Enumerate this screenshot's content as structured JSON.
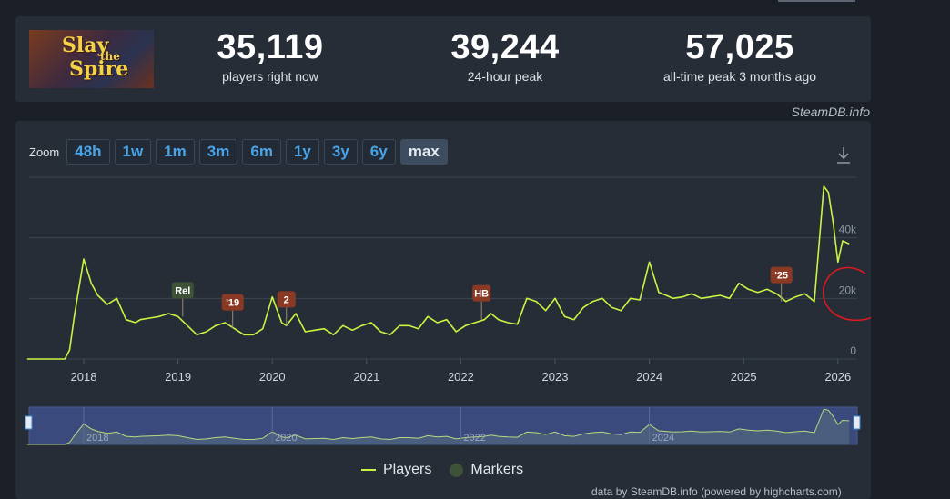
{
  "stats": [
    {
      "value": "35,119",
      "label": "players right now"
    },
    {
      "value": "39,244",
      "label": "24-hour peak"
    },
    {
      "value": "57,025",
      "label": "all-time peak 3 months ago"
    }
  ],
  "game": {
    "logo_line1": "Slay",
    "logo_line2": "the",
    "logo_line3": "Spire"
  },
  "credit_top": "SteamDB.info",
  "zoom": {
    "label": "Zoom",
    "buttons": [
      "48h",
      "1w",
      "1m",
      "3m",
      "6m",
      "1y",
      "3y",
      "6y",
      "max"
    ],
    "active": "max"
  },
  "legend": {
    "players": "Players",
    "markers": "Markers"
  },
  "credit_bottom": "data by SteamDB.info (powered by highcharts.com)",
  "colors": {
    "line": "#c9f542",
    "marker": "#8a3a24",
    "marker_release": "#3d5236",
    "annotation": "#e0191d",
    "navigator": "#3a4a7c"
  },
  "chart_data": {
    "type": "line",
    "ylim": [
      0,
      60000
    ],
    "yticks": [
      "0",
      "20k",
      "40k"
    ],
    "xticks": [
      "2018",
      "2019",
      "2020",
      "2021",
      "2022",
      "2023",
      "2024",
      "2025",
      "2026"
    ],
    "navigator_labels": [
      "2018",
      "2020",
      "2022",
      "2024"
    ],
    "series": [
      {
        "name": "Players",
        "x": [
          2017.4,
          2017.6,
          2017.8,
          2017.85,
          2017.9,
          2018.0,
          2018.08,
          2018.15,
          2018.25,
          2018.35,
          2018.45,
          2018.55,
          2018.6,
          2018.7,
          2018.8,
          2018.9,
          2019.0,
          2019.1,
          2019.2,
          2019.3,
          2019.4,
          2019.5,
          2019.6,
          2019.7,
          2019.8,
          2019.9,
          2020.0,
          2020.1,
          2020.15,
          2020.25,
          2020.35,
          2020.45,
          2020.55,
          2020.65,
          2020.75,
          2020.85,
          2020.95,
          2021.05,
          2021.15,
          2021.25,
          2021.35,
          2021.45,
          2021.55,
          2021.65,
          2021.75,
          2021.85,
          2021.95,
          2022.05,
          2022.15,
          2022.25,
          2022.32,
          2022.4,
          2022.5,
          2022.6,
          2022.7,
          2022.8,
          2022.9,
          2023.0,
          2023.1,
          2023.2,
          2023.3,
          2023.4,
          2023.5,
          2023.6,
          2023.7,
          2023.8,
          2023.9,
          2024.0,
          2024.1,
          2024.18,
          2024.25,
          2024.35,
          2024.45,
          2024.55,
          2024.65,
          2024.75,
          2024.85,
          2024.95,
          2025.05,
          2025.15,
          2025.25,
          2025.35,
          2025.45,
          2025.55,
          2025.65,
          2025.75,
          2025.85,
          2025.9,
          2025.95,
          2026.0,
          2026.05,
          2026.12
        ],
        "y": [
          0,
          0,
          0,
          3000,
          14000,
          33000,
          25000,
          21000,
          18000,
          20000,
          13000,
          12000,
          13000,
          13500,
          14000,
          15000,
          14000,
          11000,
          8000,
          9000,
          11000,
          12000,
          10000,
          8000,
          8000,
          10000,
          20500,
          12000,
          11000,
          15000,
          9000,
          9500,
          10000,
          8000,
          11000,
          9500,
          11000,
          12000,
          9000,
          8000,
          11000,
          11000,
          10000,
          14000,
          12000,
          13000,
          9000,
          11000,
          12000,
          13000,
          15000,
          13000,
          12000,
          11500,
          20000,
          19000,
          16000,
          20000,
          14000,
          13000,
          17000,
          19000,
          20000,
          17000,
          16000,
          20000,
          19500,
          32000,
          22000,
          21000,
          20000,
          20500,
          21500,
          20000,
          20500,
          21000,
          20000,
          25000,
          23000,
          22000,
          23000,
          21500,
          19000,
          20500,
          21500,
          19000,
          57000,
          55000,
          45000,
          32000,
          39000,
          38000
        ]
      }
    ],
    "markers": [
      {
        "label": "Rel",
        "x": 2019.05,
        "type": "release"
      },
      {
        "label": "'19",
        "x": 2019.58,
        "type": "sale"
      },
      {
        "label": "2",
        "x": 2020.15,
        "type": "sale"
      },
      {
        "label": "HB",
        "x": 2022.22,
        "type": "sale"
      },
      {
        "label": "'25",
        "x": 2025.4,
        "type": "sale"
      }
    ]
  }
}
